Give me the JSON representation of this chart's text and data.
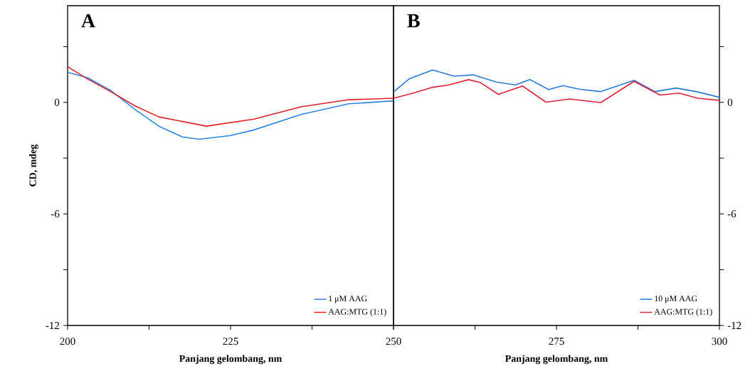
{
  "chart_data": [
    {
      "type": "line",
      "annotations": [
        "A"
      ],
      "xlabel": "Panjang gelombang, nm",
      "ylabel": "CD, mdeg",
      "xlim": [
        200,
        250
      ],
      "xticks": [
        200,
        {
          "value": 212.5,
          "label": null
        },
        225,
        {
          "value": 237.5,
          "label": null
        },
        250
      ],
      "ylim": [
        -12,
        5.2
      ],
      "yticks": [
        -12,
        {
          "value": -9,
          "label": null
        },
        -6,
        {
          "value": -3,
          "label": null
        },
        0,
        {
          "value": 3,
          "label": null
        }
      ],
      "legend": "bottom right",
      "marker": "none",
      "series": [
        {
          "name": "1 μM AAG",
          "color": "#2f86e0",
          "x": [
            200,
            203.1,
            206.7,
            210.4,
            214,
            217.6,
            220.2,
            224.9,
            228.6,
            235.8,
            243.1,
            250
          ],
          "values": [
            1.62,
            1.32,
            0.62,
            -0.4,
            -1.28,
            -1.86,
            -1.98,
            -1.79,
            -1.48,
            -0.65,
            -0.08,
            0.08
          ]
        },
        {
          "name": "AAG:MTG (1:1)",
          "color": "#e0202a",
          "x": [
            200,
            203.1,
            206.7,
            210.4,
            214,
            221.3,
            228.6,
            235.8,
            243.1,
            250
          ],
          "values": [
            1.92,
            1.25,
            0.56,
            -0.2,
            -0.78,
            -1.28,
            -0.9,
            -0.24,
            0.14,
            0.22
          ]
        }
      ]
    },
    {
      "type": "line",
      "annotations": [
        "B"
      ],
      "xlabel": "Panjang gelombang, nm",
      "xlim": [
        250,
        300
      ],
      "xticks": [
        {
          "value": 250,
          "label": null
        },
        {
          "value": 262.5,
          "label": null
        },
        275,
        {
          "value": 287.5,
          "label": null
        },
        300
      ],
      "ylim": [
        -12,
        5.2
      ],
      "yticks": [
        -12,
        {
          "value": -9,
          "label": null
        },
        -6,
        {
          "value": -3,
          "label": null
        },
        0,
        {
          "value": 3,
          "label": null
        }
      ],
      "legend": "bottom right",
      "marker": "none",
      "series": [
        {
          "name": "10 μM AAG",
          "color": "#2a7ad6",
          "x": [
            250,
            252.4,
            256,
            259.3,
            262.2,
            265.8,
            268.7,
            270.9,
            273.8,
            276,
            278.5,
            281.8,
            286.9,
            290.1,
            293.4,
            296.7,
            300
          ],
          "values": [
            0.56,
            1.26,
            1.74,
            1.41,
            1.48,
            1.09,
            0.94,
            1.23,
            0.69,
            0.9,
            0.71,
            0.58,
            1.19,
            0.58,
            0.77,
            0.56,
            0.27
          ]
        },
        {
          "name": "AAG:MTG (1:1)",
          "color": "#e0203a",
          "x": [
            250,
            253,
            256,
            258.5,
            261.5,
            263.3,
            266.1,
            269.8,
            273.4,
            277,
            281.8,
            286.9,
            290.9,
            293.8,
            296.7,
            300
          ],
          "values": [
            0.22,
            0.5,
            0.81,
            0.94,
            1.22,
            1.07,
            0.43,
            0.88,
            0.01,
            0.18,
            -0.01,
            1.13,
            0.39,
            0.5,
            0.22,
            0.11
          ]
        }
      ]
    }
  ]
}
